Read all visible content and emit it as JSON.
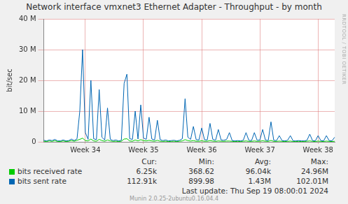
{
  "chart_data": {
    "type": "line",
    "title": "Network interface vmxnet3 Ethernet Adapter - Throughput - by month",
    "ylabel": "bit/sec",
    "watermark": "RRDTOOL / TOBI OETIKER",
    "footer": "Last update:  Thu Sep 19 08:00:01 2024",
    "generator": "Munin 2.0.25-2ubuntu0.16.04.4",
    "stats_header": [
      "Cur:",
      "Min:",
      "Avg:",
      "Max:"
    ],
    "categories": [
      null,
      null,
      null,
      null,
      null,
      null,
      null,
      null,
      null,
      null,
      null,
      null,
      null,
      null,
      null,
      "Week 34",
      null,
      null,
      null,
      null,
      null,
      null,
      null,
      null,
      null,
      null,
      null,
      null,
      null,
      null,
      null,
      null,
      null,
      null,
      null,
      null,
      "Week 35",
      null,
      null,
      null,
      null,
      null,
      null,
      null,
      null,
      null,
      null,
      null,
      null,
      null,
      null,
      null,
      null,
      null,
      null,
      null,
      null,
      "Week 36",
      null,
      null,
      null,
      null,
      null,
      null,
      null,
      null,
      null,
      null,
      null,
      null,
      null,
      null,
      null,
      null,
      null,
      null,
      null,
      null,
      "Week 37",
      null,
      null,
      null,
      null,
      null,
      null,
      null,
      null,
      null,
      null,
      null,
      null,
      null,
      null,
      null,
      null,
      null,
      null,
      null,
      null,
      "Week 38",
      null,
      null,
      null,
      null,
      null,
      null
    ],
    "series": [
      {
        "name": "bits received rate",
        "color": "#00cc00",
        "stats": [
          "6.25k",
          "368.62",
          "96.04k",
          "24.96M"
        ],
        "values": [
          200000,
          100000,
          300000,
          150000,
          400000,
          100000,
          100000,
          300000,
          100000,
          200000,
          400000,
          200000,
          500000,
          800000,
          1200000,
          400000,
          300000,
          900000,
          300000,
          200000,
          800000,
          400000,
          200000,
          600000,
          300000,
          150000,
          200000,
          100000,
          200000,
          900000,
          1000000,
          300000,
          200000,
          600000,
          300000,
          700000,
          400000,
          300000,
          500000,
          300000,
          200000,
          500000,
          200000,
          150000,
          200000,
          100000,
          150000,
          200000,
          100000,
          200000,
          300000,
          700000,
          400000,
          250000,
          400000,
          200000,
          200000,
          350000,
          200000,
          200000,
          400000,
          250000,
          150000,
          300000,
          200000,
          150000,
          250000,
          250000,
          150000,
          100000,
          150000,
          100000,
          200000,
          300000,
          150000,
          150000,
          300000,
          150000,
          200000,
          350000,
          200000,
          150000,
          450000,
          150000,
          150000,
          250000,
          150000,
          100000,
          150000,
          250000,
          100000,
          100000,
          150000,
          100000,
          100000,
          200000,
          300000,
          150000,
          100000,
          250000,
          150000,
          100000,
          250000,
          150000,
          100000,
          200000
        ]
      },
      {
        "name": "bits sent rate",
        "color": "#0066b3",
        "stats": [
          "112.91k",
          "899.98",
          "1.43M",
          "102.01M"
        ],
        "values": [
          500000,
          300000,
          600000,
          400000,
          800000,
          300000,
          300000,
          600000,
          300000,
          400000,
          900000,
          400000,
          1000000,
          10000000,
          30000000,
          3000000,
          800000,
          20000000,
          1000000,
          700000,
          17000000,
          1500000,
          600000,
          11000000,
          800000,
          400000,
          600000,
          300000,
          500000,
          19000000,
          22000000,
          1000000,
          800000,
          10000000,
          900000,
          12000000,
          1200000,
          800000,
          8000000,
          900000,
          600000,
          7000000,
          700000,
          400000,
          600000,
          300000,
          400000,
          500000,
          300000,
          500000,
          1000000,
          14000000,
          1500000,
          800000,
          5000000,
          700000,
          600000,
          4500000,
          700000,
          600000,
          6000000,
          800000,
          500000,
          4000000,
          600000,
          500000,
          800000,
          3000000,
          400000,
          300000,
          400000,
          300000,
          500000,
          3000000,
          500000,
          400000,
          3000000,
          500000,
          600000,
          4000000,
          600000,
          400000,
          6500000,
          500000,
          400000,
          2000000,
          400000,
          300000,
          500000,
          2000000,
          300000,
          300000,
          400000,
          300000,
          300000,
          500000,
          2500000,
          400000,
          300000,
          2000000,
          400000,
          300000,
          2000000,
          400000,
          300000,
          1500000
        ]
      }
    ],
    "ylim": [
      0,
      40000000
    ],
    "yticks": [
      0,
      {
        "value": 10000000,
        "label": "10 M"
      },
      {
        "value": 20000000,
        "label": "20 M"
      },
      {
        "value": 30000000,
        "label": "30 M"
      },
      {
        "value": 40000000,
        "label": "40 M"
      }
    ],
    "grid": true,
    "legend": "bottom"
  }
}
